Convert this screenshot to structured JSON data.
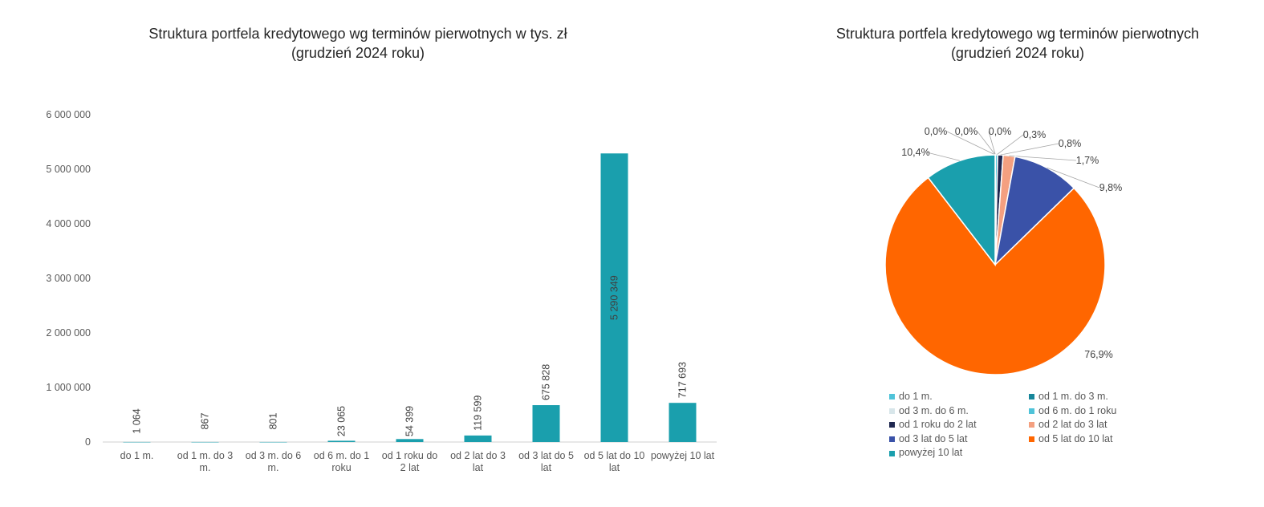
{
  "colors": {
    "teal": "#1a9fad",
    "orange": "#ff6600",
    "blue": "#3a52a8",
    "salmon": "#f4a080",
    "navy": "#1f2750",
    "lightblue": "#4fc3d9",
    "palegray": "#d8e6ea",
    "darkteal": "#17869a"
  },
  "chart_data": [
    {
      "type": "bar",
      "title_line1": "Struktura portfela kredytowego wg terminów pierwotnych w tys. zł",
      "title_line2": "(grudzień 2024 roku)",
      "categories": [
        [
          "do 1 m."
        ],
        [
          "od 1 m. do 3",
          "m."
        ],
        [
          "od 3 m. do 6",
          "m."
        ],
        [
          "od 6 m. do 1",
          "roku"
        ],
        [
          "od 1 roku do",
          "2 lat"
        ],
        [
          "od 2 lat do 3",
          "lat"
        ],
        [
          "od 3 lat do 5",
          "lat"
        ],
        [
          "od 5 lat do 10",
          "lat"
        ],
        [
          "powyżej 10 lat"
        ]
      ],
      "values": [
        1064,
        867,
        801,
        23065,
        54399,
        119599,
        675828,
        5290349,
        717693
      ],
      "data_labels": [
        "1 064",
        "867",
        "801",
        "23 065",
        "54 399",
        "119 599",
        "675 828",
        "5 290 349",
        "717 693"
      ],
      "ylim": [
        0,
        6000000
      ],
      "yticks": [
        "0",
        "1 000 000",
        "2 000 000",
        "3 000 000",
        "4 000 000",
        "5 000 000",
        "6 000 000"
      ],
      "bar_color": "#1a9fad",
      "grid": false,
      "xlabel": "",
      "ylabel": ""
    },
    {
      "type": "pie",
      "title_line1": "Struktura portfela kredytowego wg terminów pierwotnych",
      "title_line2": "(grudzień 2024 roku)",
      "slices": [
        {
          "name": "do 1 m.",
          "value": 0.0155,
          "label": "0,0%",
          "color": "#4fc3d9"
        },
        {
          "name": "od 1 m. do 3 m.",
          "value": 0.0126,
          "label": "0,0%",
          "color": "#17869a"
        },
        {
          "name": "od 3 m. do 6 m.",
          "value": 0.0116,
          "label": "0,0%",
          "color": "#d8e6ea"
        },
        {
          "name": "od 6 m. do 1 roku",
          "value": 0.335,
          "label": "0,3%",
          "color": "#4fc3d9"
        },
        {
          "name": "od 1 roku do 2 lat",
          "value": 0.79,
          "label": "0,8%",
          "color": "#1f2750"
        },
        {
          "name": "od 2 lat do 3 lat",
          "value": 1.74,
          "label": "1,7%",
          "color": "#f4a080"
        },
        {
          "name": "od 3 lat do 5 lat",
          "value": 9.82,
          "label": "9,8%",
          "color": "#3a52a8"
        },
        {
          "name": "od 5 lat do 10 lat",
          "value": 76.87,
          "label": "76,9%",
          "color": "#ff6600"
        },
        {
          "name": "powyżej 10 lat",
          "value": 10.43,
          "label": "10,4%",
          "color": "#1a9fad"
        }
      ],
      "legend_position": "bottom"
    }
  ]
}
